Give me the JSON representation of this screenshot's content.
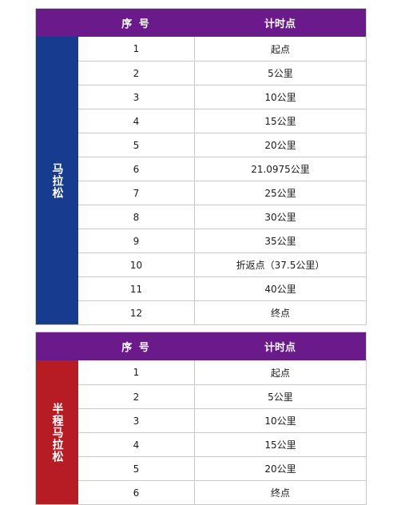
{
  "tables": [
    {
      "category": "马拉松",
      "category_color": "#173c8f",
      "header": {
        "seq": "序 号",
        "point": "计时点"
      },
      "rows": [
        {
          "seq": "1",
          "point": "起点"
        },
        {
          "seq": "2",
          "point": "5公里"
        },
        {
          "seq": "3",
          "point": "10公里"
        },
        {
          "seq": "4",
          "point": "15公里"
        },
        {
          "seq": "5",
          "point": "20公里"
        },
        {
          "seq": "6",
          "point": "21.0975公里"
        },
        {
          "seq": "7",
          "point": "25公里"
        },
        {
          "seq": "8",
          "point": "30公里"
        },
        {
          "seq": "9",
          "point": "35公里"
        },
        {
          "seq": "10",
          "point": "折返点（37.5公里）"
        },
        {
          "seq": "11",
          "point": "40公里"
        },
        {
          "seq": "12",
          "point": "终点"
        }
      ]
    },
    {
      "category": "半程马拉松",
      "category_color": "#b71c24",
      "header": {
        "seq": "序 号",
        "point": "计时点"
      },
      "rows": [
        {
          "seq": "1",
          "point": "起点"
        },
        {
          "seq": "2",
          "point": "5公里"
        },
        {
          "seq": "3",
          "point": "10公里"
        },
        {
          "seq": "4",
          "point": "15公里"
        },
        {
          "seq": "5",
          "point": "20公里"
        },
        {
          "seq": "6",
          "point": "终点"
        }
      ]
    }
  ],
  "colors": {
    "header": "#6a1a8a"
  }
}
